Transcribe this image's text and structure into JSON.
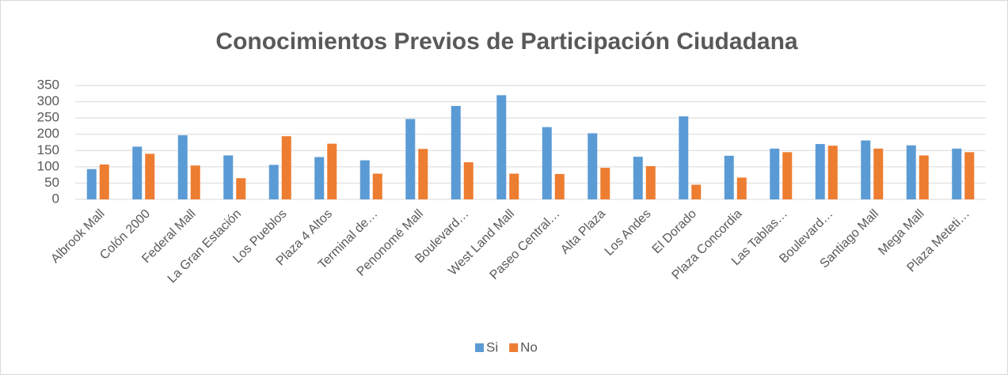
{
  "chart_data": {
    "type": "bar",
    "title": "Conocimientos Previos de Participación Ciudadana",
    "categories": [
      "Albrook Mall",
      "Colón 2000",
      "Federal Mall",
      "La Gran Estación",
      "Los Pueblos",
      "Plaza 4 Altos",
      "Terminal de…",
      "Penonomé Mall",
      "Boulevard…",
      "West Land Mall",
      "Paseo Central…",
      "Alta Plaza",
      "Los Andes",
      "El Dorado",
      "Plaza Concordia",
      "Las Tablas…",
      "Boulevard…",
      "Santiago Mall",
      "Mega Mall",
      "Plaza Meteti…"
    ],
    "series": [
      {
        "name": "Si",
        "color": "#5b9bd5",
        "values": [
          93,
          162,
          197,
          135,
          106,
          130,
          120,
          247,
          287,
          320,
          222,
          203,
          131,
          255,
          134,
          156,
          170,
          181,
          166,
          156
        ]
      },
      {
        "name": "No",
        "color": "#ed7d31",
        "values": [
          107,
          140,
          104,
          65,
          194,
          171,
          79,
          155,
          114,
          79,
          78,
          97,
          102,
          45,
          67,
          145,
          165,
          156,
          135,
          145
        ]
      }
    ],
    "ylim": [
      0,
      350
    ],
    "yticks": [
      0,
      50,
      100,
      150,
      200,
      250,
      300,
      350
    ],
    "grid": true,
    "legend": "bottom"
  }
}
